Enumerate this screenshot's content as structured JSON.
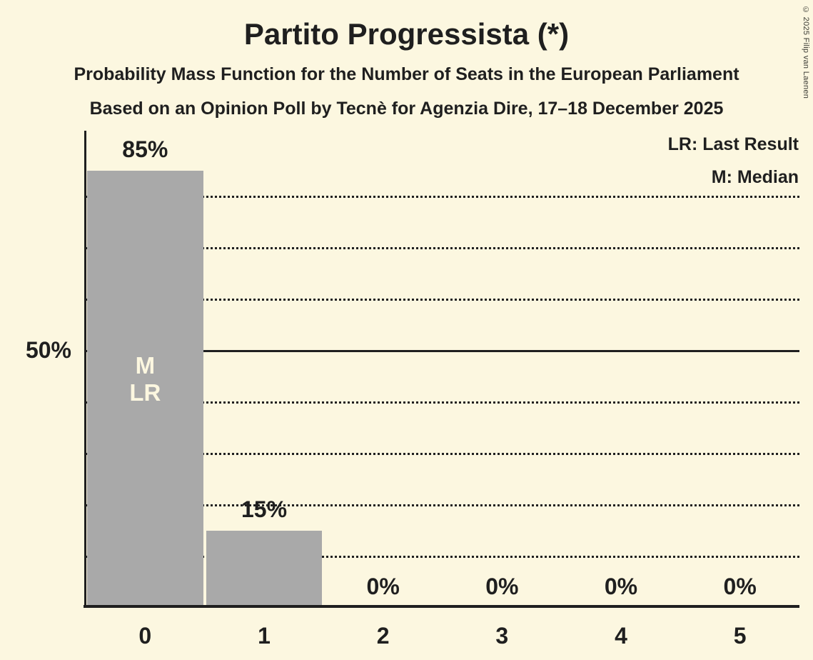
{
  "header": {
    "title": "Partito Progressista (*)",
    "subtitle1": "Probability Mass Function for the Number of Seats in the European Parliament",
    "subtitle2": "Based on an Opinion Poll by Tecnè for Agenzia Dire, 17–18 December 2025"
  },
  "legend": {
    "lr": "LR: Last Result",
    "m": "M: Median"
  },
  "copyright": "© 2025 Filip van Laenen",
  "chart_data": {
    "type": "bar",
    "title": "Partito Progressista (*)",
    "xlabel": "",
    "ylabel": "",
    "categories": [
      "0",
      "1",
      "2",
      "3",
      "4",
      "5"
    ],
    "values": [
      85,
      15,
      0,
      0,
      0,
      0
    ],
    "value_labels": [
      "85%",
      "15%",
      "0%",
      "0%",
      "0%",
      "0%"
    ],
    "y_axis_label": "50%",
    "y_axis_label_pct": 50,
    "ylim": [
      0,
      92
    ],
    "gridlines": {
      "dotted_pct": [
        10,
        20,
        30,
        40,
        60,
        70,
        80
      ],
      "solid_pct": [
        50
      ]
    },
    "grid": true,
    "legend_position": "top-right",
    "legend_entries": [
      "LR: Last Result",
      "M: Median"
    ],
    "bar_annotation": {
      "bar_index": 0,
      "lines": [
        "M",
        "LR"
      ]
    },
    "median_seats": "0",
    "last_result_seats": "0",
    "colors": {
      "background": "#FCF7E0",
      "bar": "#A9A9A9",
      "text": "#1F1F1F",
      "annotation_text": "#FCF7E0"
    }
  }
}
